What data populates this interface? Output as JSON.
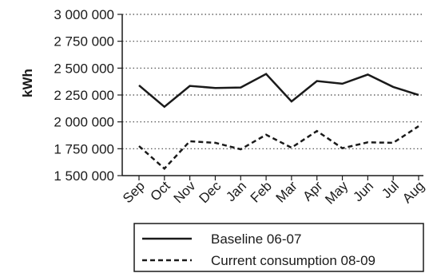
{
  "chart_data": {
    "type": "line",
    "categories": [
      "Sep",
      "Oct",
      "Nov",
      "Dec",
      "Jan",
      "Feb",
      "Mar",
      "Apr",
      "May",
      "Jun",
      "Jul",
      "Aug"
    ],
    "series": [
      {
        "name": "Baseline 06-07",
        "style": "solid",
        "values": [
          2340000,
          2140000,
          2335000,
          2315000,
          2320000,
          2445000,
          2190000,
          2380000,
          2355000,
          2440000,
          2325000,
          2250000
        ]
      },
      {
        "name": "Current consumption 08-09",
        "style": "dashed",
        "values": [
          1775000,
          1565000,
          1820000,
          1805000,
          1745000,
          1880000,
          1760000,
          1915000,
          1755000,
          1810000,
          1805000,
          1960000
        ]
      }
    ],
    "ylabel": "kWh",
    "ylim": [
      1500000,
      3000000
    ],
    "yticks": [
      {
        "value": 1500000,
        "label": "1 500 000"
      },
      {
        "value": 1750000,
        "label": "1 750 000"
      },
      {
        "value": 2000000,
        "label": "2 000 000"
      },
      {
        "value": 2250000,
        "label": "2 250 000"
      },
      {
        "value": 2500000,
        "label": "2 500 000"
      },
      {
        "value": 2750000,
        "label": "2 750 000"
      },
      {
        "value": 3000000,
        "label": "3 000 000"
      }
    ],
    "grid": "horizontal-dotted",
    "legend_position": "bottom"
  }
}
